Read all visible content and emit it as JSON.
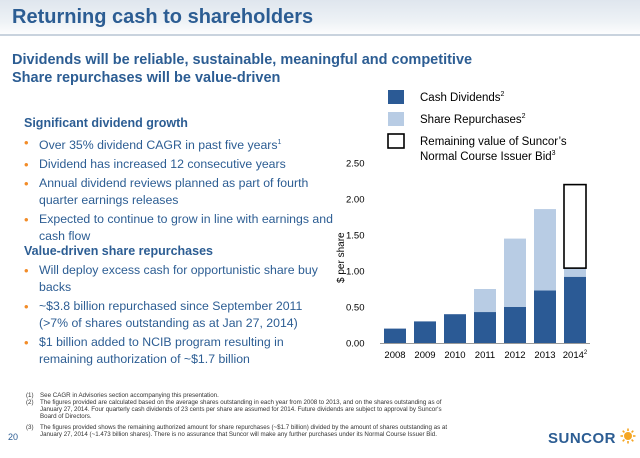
{
  "page": {
    "title": "Returning cash to shareholders",
    "subtitle_line1": "Dividends will be reliable, sustainable, meaningful and competitive",
    "subtitle_line2": "Share repurchases will be value-driven",
    "page_number": "20",
    "logo_text": "SUNCOR"
  },
  "dividend_section": {
    "heading": "Significant dividend growth",
    "bullets": [
      {
        "text": "Over 35% dividend CAGR in past five years",
        "sup": "1"
      },
      {
        "text": "Dividend has increased 12 consecutive years",
        "sup": ""
      },
      {
        "text": "Annual dividend reviews planned as part of fourth quarter earnings releases",
        "sup": ""
      },
      {
        "text": "Expected to continue to grow in line with earnings and cash flow",
        "sup": ""
      }
    ]
  },
  "repurchase_section": {
    "heading": "Value-driven share repurchases",
    "bullets": [
      {
        "text": "Will deploy excess cash for opportunistic share buy backs",
        "sup": ""
      },
      {
        "text": "~$3.8 billion repurchased since September 2011 (>7% of shares outstanding as at Jan 27, 2014)",
        "sup": ""
      },
      {
        "text": "$1 billion added to NCIB program resulting in remaining authorization of ~$1.7 billion",
        "sup": ""
      }
    ]
  },
  "chart_data": {
    "type": "bar",
    "stacked": true,
    "categories": [
      "2008",
      "2009",
      "2010",
      "2011",
      "2012",
      "2013",
      "2014"
    ],
    "category_superscripts": [
      "",
      "",
      "",
      "",
      "",
      "",
      "2"
    ],
    "ylabel": "$ per share",
    "ylim": [
      0,
      2.5
    ],
    "yticks": [
      "0.00",
      "0.50",
      "1.00",
      "1.50",
      "2.00",
      "2.50"
    ],
    "series": [
      {
        "name": "Cash Dividends",
        "sup": "2",
        "color": "#2b5a95",
        "values": [
          0.2,
          0.3,
          0.4,
          0.43,
          0.5,
          0.73,
          0.92
        ]
      },
      {
        "name": "Share Repurchases",
        "sup": "2",
        "color": "#b8cce4",
        "values": [
          0,
          0,
          0,
          0.32,
          0.95,
          1.13,
          0.12
        ]
      },
      {
        "name": "Remaining value of Suncor's Normal Course Issuer Bid",
        "name_line1": "Remaining value of Suncor’s",
        "name_line2": "Normal Course Issuer Bid",
        "sup": "3",
        "color": "#ffffff",
        "values": [
          0,
          0,
          0,
          0,
          0,
          0,
          1.16
        ]
      }
    ]
  },
  "footnotes": [
    {
      "num": "(1)",
      "lines": [
        "See CAGR in Advisories section accompanying this presentation."
      ]
    },
    {
      "num": "(2)",
      "lines": [
        "The figures provided are calculated based on the average shares outstanding in each year from 2008 to 2013, and on the shares outstanding as of",
        "January 27, 2014. Four quarterly cash dividends of 23 cents per share are assumed for 2014. Future dividends are subject to approval by Suncor's",
        "Board of Directors."
      ]
    },
    {
      "num": "(3)",
      "lines": [
        "The figures provided shows the remaining authorized amount for share repurchases (~$1.7 billion) divided by the amount of shares outstanding as at",
        "January 27, 2014 (~1.473 billion shares). There is no assurance that Suncor will make any further purchases under its Normal Course Issuer Bid."
      ]
    }
  ]
}
